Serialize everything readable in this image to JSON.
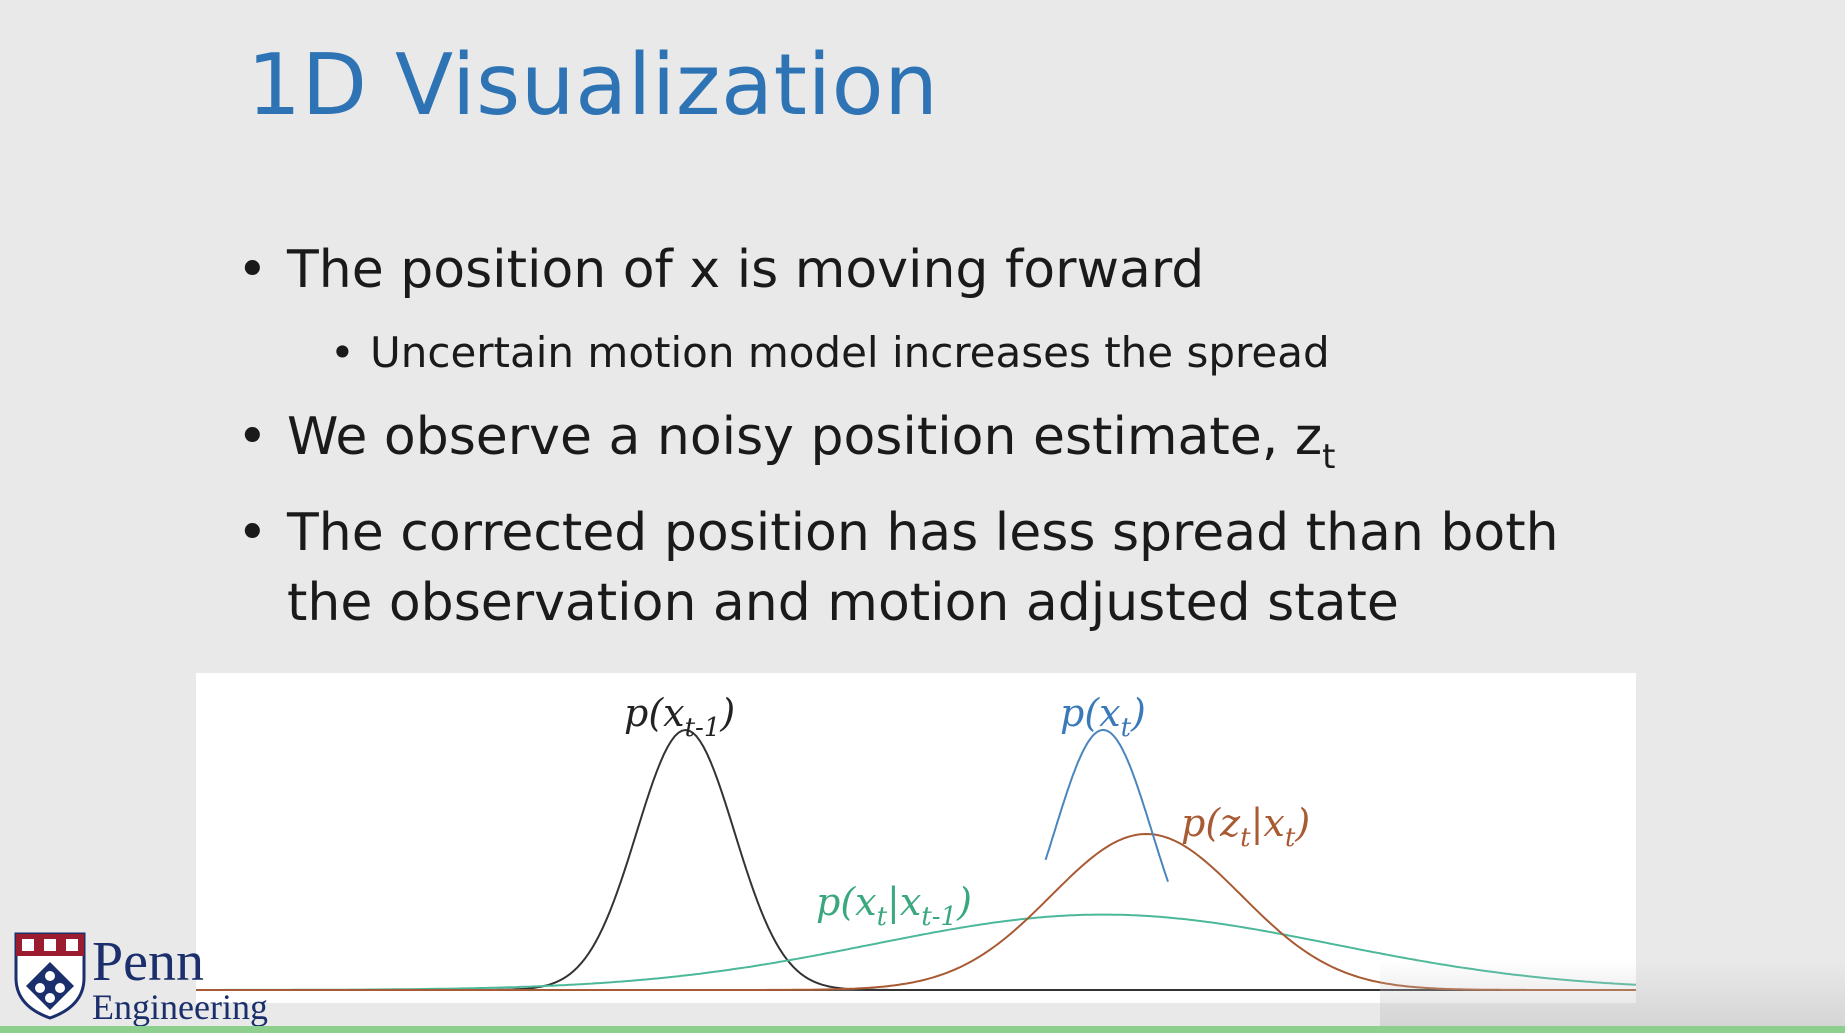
{
  "slide": {
    "title": "1D Visualization",
    "bullets": [
      {
        "level": 1,
        "text": "The position of x is moving forward"
      },
      {
        "level": 2,
        "text": "Uncertain motion model increases the spread"
      },
      {
        "level": 1,
        "text": "We observe a noisy position estimate, z",
        "subscript": "t"
      },
      {
        "level": 1,
        "text_line1": "The corrected position has less spread than both",
        "text_line2": "the observation and motion adjusted state"
      }
    ],
    "bullet_symbol": "•"
  },
  "chart_data": {
    "type": "line",
    "title": "",
    "xlabel": "",
    "ylabel": "",
    "grid": false,
    "series": [
      {
        "name": "p(x_{t-1})",
        "color": "#333333",
        "mean": 0.34,
        "sd": 0.034,
        "peak": 1.0
      },
      {
        "name": "p(x_t|x_{t-1})",
        "color": "#4cb89a",
        "mean": 0.63,
        "sd": 0.16,
        "peak": 0.29
      },
      {
        "name": "p(z_t|x_t)",
        "color": "#a85a32",
        "mean": 0.66,
        "sd": 0.066,
        "peak": 0.6
      },
      {
        "name": "p(x_t)",
        "color": "#4a86bd",
        "mean": 0.63,
        "sd": 0.034,
        "peak": 1.0
      }
    ],
    "labels": {
      "prev": {
        "main": "p(x",
        "sub": "t-1",
        "end": ")",
        "color": "#222222"
      },
      "posterior": {
        "main": "p(x",
        "sub": "t",
        "end": ")",
        "color": "#3a7ab8"
      },
      "likelihood": {
        "main": "p(z",
        "sub": "t",
        "mid": "|x",
        "sub2": "t",
        "end": ")",
        "color": "#a85a32"
      },
      "motion": {
        "main": "p(x",
        "sub": "t",
        "mid": "|x",
        "sub2": "t-1",
        "end": ")",
        "color": "#3aa87e"
      }
    }
  },
  "logo": {
    "line1": "Penn",
    "line2": "Engineering",
    "colors": {
      "navy": "#1a2f6b",
      "red": "#9b1c2e"
    }
  }
}
